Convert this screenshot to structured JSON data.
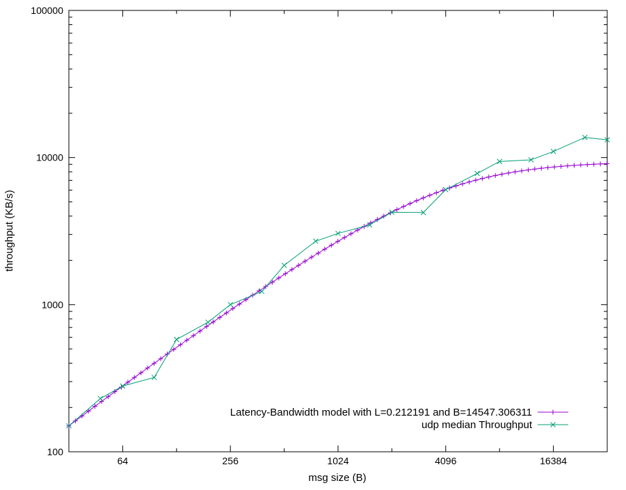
{
  "chart_data": {
    "type": "line",
    "title": "",
    "xlabel": "msg size (B)",
    "ylabel": "throughput (KB/s)",
    "x_scale": "log2",
    "y_scale": "log10",
    "xlim": [
      32,
      32768
    ],
    "ylim": [
      100,
      100000
    ],
    "x_ticks": [
      {
        "value": 64,
        "label": "64"
      },
      {
        "value": 256,
        "label": "256"
      },
      {
        "value": 1024,
        "label": "1024"
      },
      {
        "value": 4096,
        "label": "4096"
      },
      {
        "value": 16384,
        "label": "16384"
      }
    ],
    "y_ticks": [
      {
        "value": 100,
        "label": "100"
      },
      {
        "value": 1000,
        "label": "1000"
      },
      {
        "value": 10000,
        "label": "10000"
      },
      {
        "value": 100000,
        "label": "100000"
      }
    ],
    "grid": false,
    "legend_position": "bottom-right",
    "series": [
      {
        "name": "Latency-Bandwidth model with L=0.212191 and B=14547.306311",
        "color": "#9400d3",
        "marker": "plus",
        "model": {
          "L": 0.212191,
          "B": 14547.306311
        },
        "x": [
          32,
          34.8,
          37.9,
          41.2,
          44.8,
          48.8,
          53.1,
          57.8,
          62.9,
          68.4,
          74.4,
          81,
          88.1,
          95.9,
          104.4,
          113.6,
          123.6,
          134.5,
          146.3,
          159.2,
          173.3,
          188.6,
          205.2,
          223.3,
          243,
          264.4,
          287.7,
          313.1,
          340.7,
          370.7,
          403.4,
          439,
          477.7,
          519.8,
          565.6,
          615.5,
          669.8,
          728.8,
          793.1,
          863,
          939.1,
          1021.9,
          1112,
          1210,
          1316.7,
          1432.8,
          1559.2,
          1696.6,
          1846.2,
          2009,
          2186.2,
          2378.9,
          2588.7,
          2816.9,
          3065.3,
          3335.6,
          3629.7,
          3949.7,
          4298,
          4677,
          5089.3,
          5538.1,
          6026.4,
          6557.7,
          7135.9,
          7765.1,
          8449.8,
          9194.8,
          10005.5,
          10887.7,
          11847.6,
          12892.3,
          14029,
          15266,
          16612,
          18076.7,
          19670.5,
          21404.8,
          23292,
          25345.7,
          27580.4,
          30012.2,
          32658.4
        ],
        "y": [
          150,
          162,
          175,
          189,
          204,
          220,
          237,
          256,
          275,
          297,
          320,
          344,
          371,
          399,
          429,
          462,
          497,
          534,
          574,
          616,
          662,
          711,
          763,
          819,
          878,
          942,
          1010,
          1082,
          1159,
          1241,
          1328,
          1421,
          1519,
          1623,
          1733,
          1850,
          1973,
          2103,
          2239,
          2384,
          2535,
          2693,
          2859,
          3032,
          3212,
          3399,
          3593,
          3793,
          3999,
          4209,
          4425,
          4644,
          4866,
          5090,
          5315,
          5540,
          5763,
          5984,
          6202,
          6415,
          6623,
          6823,
          7016,
          7202,
          7378,
          7546,
          7704,
          7852,
          7991,
          8120,
          8240,
          8351,
          8453,
          8546,
          8632,
          8710,
          8781,
          8846,
          8905,
          8958,
          9006,
          9050,
          9090
        ]
      },
      {
        "name": "udp median Throughput",
        "color": "#009e73",
        "marker": "cross",
        "x": [
          32,
          48,
          64,
          96,
          128,
          192,
          256,
          384,
          512,
          768,
          1024,
          1536,
          2048,
          3072,
          4096,
          6144,
          8192,
          12288,
          16384,
          24576,
          32768
        ],
        "y": [
          150,
          230,
          280,
          320,
          580,
          760,
          1000,
          1230,
          1850,
          2700,
          3050,
          3480,
          4250,
          4230,
          6050,
          7800,
          9400,
          9650,
          11000,
          13700,
          13200
        ]
      }
    ]
  }
}
